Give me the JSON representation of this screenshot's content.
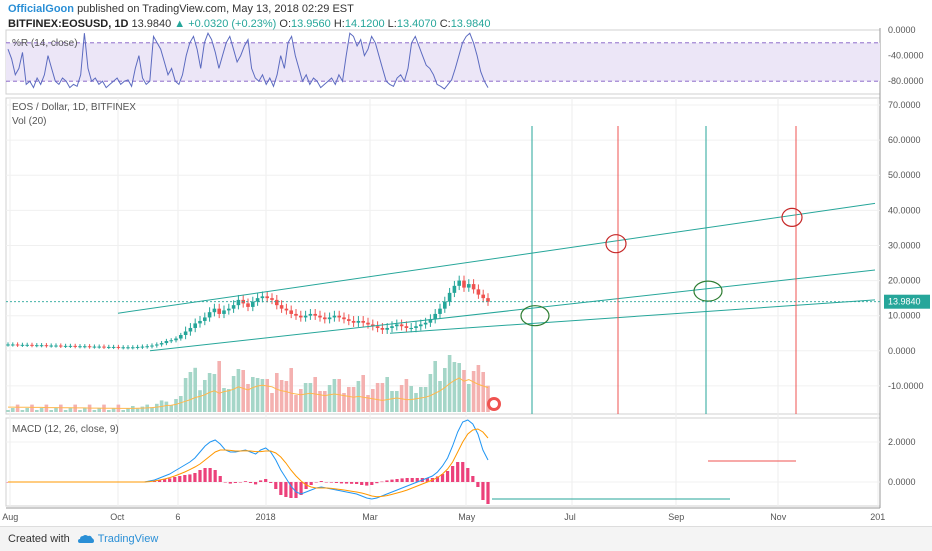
{
  "header": {
    "author": "OfficialGoon",
    "published_text": "published on TradingView.com, May 13, 2018 02:29 EST",
    "symbol": "BITFINEX:EOSUSD, 1D",
    "last": "13.9840",
    "change": "+0.0320 (+0.23%)",
    "o_label": "O:",
    "o_value": "13.9560",
    "h_label": "H:",
    "h_value": "14.1200",
    "l_label": "L:",
    "l_value": "13.4070",
    "c_label": "C:",
    "c_value": "13.9840"
  },
  "footer": {
    "created_with": "Created with",
    "brand": "TradingView"
  },
  "colors": {
    "up": "#26a69a",
    "down": "#ef5350",
    "accent": "#2a8fd6",
    "wr_band": "#ece6f7"
  },
  "chart_data": [
    {
      "type": "line",
      "pane": "williams-r",
      "title": "%R (14, close)",
      "ylim": [
        -100,
        0
      ],
      "y_ticks": [
        "0.0000",
        "-40.0000",
        "-80.0000"
      ],
      "y_tick_values": [
        0,
        -40,
        -80
      ],
      "band": [
        -80,
        -20
      ],
      "values": [
        -30,
        -45,
        -70,
        -60,
        -35,
        -85,
        -80,
        -90,
        -75,
        -85,
        -70,
        -40,
        -60,
        -80,
        -85,
        -75,
        -80,
        -90,
        -85,
        -88,
        -70,
        -5,
        -60,
        -80,
        -75,
        -85,
        -80,
        -90,
        -85,
        -80,
        -75,
        -85,
        -80,
        -78,
        -88,
        -60,
        -40,
        -75,
        -85,
        -80,
        -10,
        -20,
        -30,
        -50,
        -70,
        -60,
        -80,
        -85,
        -70,
        -40,
        -20,
        -10,
        -30,
        -60,
        -20,
        -5,
        -15,
        -35,
        -60,
        -40,
        -20,
        -10,
        -30,
        -50,
        -40,
        -25,
        -15,
        -60,
        -75,
        -80,
        -70,
        -85,
        -75,
        -88,
        -70,
        -40,
        -60,
        -20,
        -10,
        -40,
        -60,
        -80,
        -70,
        -85,
        -75,
        -80,
        -90,
        -85,
        -80,
        -75,
        -85,
        -70,
        -80,
        -40,
        -5,
        -10,
        -25,
        -15,
        -40,
        -30,
        -10,
        -20,
        -40,
        -60,
        -80,
        -85,
        -88,
        -75,
        -70,
        -80,
        -60,
        -20,
        -10,
        -25,
        -40,
        -55,
        -60,
        -70,
        -85,
        -88,
        -92,
        -85,
        -78,
        -60,
        -40,
        -20,
        -10,
        -5,
        -20,
        -40,
        -65,
        -80,
        -90
      ]
    },
    {
      "type": "candlestick",
      "pane": "price",
      "title": "EOS / Dollar, 1D, BITFINEX",
      "volume_label": "Vol (20)",
      "ylim": [
        -18,
        72
      ],
      "y_ticks": [
        "70.0000",
        "60.0000",
        "50.0000",
        "40.0000",
        "30.0000",
        "20.0000",
        "10.0000",
        "0.0000",
        "-10.0000"
      ],
      "y_tick_values": [
        70,
        60,
        50,
        40,
        30,
        20,
        10,
        0,
        -10
      ],
      "last_price_label": "13.9840",
      "last_price": 13.984,
      "x_ticks": [
        "Aug",
        "Oct",
        "6",
        "2018",
        "Mar",
        "May",
        "Jul",
        "Sep",
        "Nov",
        "201"
      ],
      "close": [
        1.8,
        1.8,
        1.7,
        1.7,
        1.7,
        1.6,
        1.6,
        1.6,
        1.5,
        1.5,
        1.5,
        1.4,
        1.4,
        1.4,
        1.3,
        1.3,
        1.3,
        1.2,
        1.2,
        1.2,
        1.1,
        1.1,
        1.1,
        1.0,
        1.0,
        1.0,
        1.0,
        1.1,
        1.2,
        1.3,
        1.5,
        1.8,
        2.2,
        2.8,
        3.0,
        3.5,
        4.5,
        5.5,
        6.5,
        7.8,
        8.5,
        9.5,
        11.0,
        12.0,
        10.5,
        11.5,
        12.0,
        13.0,
        14.5,
        13.5,
        12.5,
        14.0,
        15.0,
        15.5,
        15.0,
        14.5,
        13.0,
        12.0,
        11.5,
        10.5,
        10.0,
        9.5,
        10.0,
        10.5,
        10.0,
        9.5,
        9.0,
        9.5,
        10.0,
        9.5,
        9.0,
        8.5,
        8.0,
        8.5,
        8.0,
        7.5,
        7.0,
        6.5,
        6.0,
        6.5,
        7.0,
        7.5,
        7.0,
        6.5,
        6.5,
        7.0,
        7.5,
        8.0,
        9.0,
        10.5,
        12.0,
        14.0,
        16.5,
        18.5,
        20.0,
        18.0,
        19.0,
        17.5,
        16.0,
        15.0,
        13.98
      ],
      "trendlines": [
        {
          "from": [
            118,
            10.7
          ],
          "to": [
            875,
            42.0
          ],
          "color": "#26a69a"
        },
        {
          "from": [
            150,
            0.0
          ],
          "to": [
            875,
            23.0
          ],
          "color": "#26a69a"
        },
        {
          "from": [
            390,
            5.0
          ],
          "to": [
            875,
            14.5
          ],
          "color": "#26a69a"
        }
      ],
      "vertical_lines": [
        {
          "x": 532,
          "color": "#26a69a"
        },
        {
          "x": 618,
          "color": "#ef5350"
        },
        {
          "x": 706,
          "color": "#26a69a"
        },
        {
          "x": 796,
          "color": "#ef5350"
        }
      ],
      "circles": [
        {
          "x": 535,
          "y": 10.0,
          "color": "#2e7d32"
        },
        {
          "x": 616,
          "y": 30.5,
          "color": "#c62828"
        },
        {
          "x": 708,
          "y": 17.0,
          "color": "#2e7d32"
        },
        {
          "x": 792,
          "y": 38.0,
          "color": "#c62828"
        }
      ]
    },
    {
      "type": "line",
      "pane": "macd",
      "title": "MACD (12, 26, close, 9)",
      "ylim": [
        -1.2,
        3.2
      ],
      "y_ticks": [
        "2.0000",
        "0.0000"
      ],
      "y_tick_values": [
        2,
        0
      ],
      "macd": [
        0,
        0,
        0,
        0,
        0,
        0,
        0,
        0,
        0,
        0,
        0,
        0,
        0,
        0,
        0,
        0,
        0,
        0,
        0,
        0,
        0,
        0,
        0,
        0,
        0,
        0,
        0,
        0,
        0.05,
        0.1,
        0.2,
        0.3,
        0.4,
        0.55,
        0.7,
        0.85,
        1.0,
        1.2,
        1.5,
        1.8,
        2.0,
        2.1,
        1.9,
        1.6,
        1.5,
        1.5,
        1.55,
        1.6,
        1.5,
        1.4,
        1.6,
        1.7,
        1.5,
        1.1,
        0.6,
        0.2,
        -0.2,
        -0.5,
        -0.6,
        -0.5,
        -0.4,
        -0.3,
        -0.25,
        -0.3,
        -0.35,
        -0.4,
        -0.45,
        -0.5,
        -0.55,
        -0.6,
        -0.7,
        -0.8,
        -0.85,
        -0.8,
        -0.7,
        -0.6,
        -0.5,
        -0.4,
        -0.3,
        -0.2,
        -0.1,
        0,
        0.1,
        0.2,
        0.3,
        0.5,
        0.8,
        1.2,
        1.8,
        2.5,
        3.0,
        3.1,
        2.9,
        2.4,
        1.6,
        1.1
      ],
      "signal": [
        0,
        0,
        0,
        0,
        0,
        0,
        0,
        0,
        0,
        0,
        0,
        0,
        0,
        0,
        0,
        0,
        0,
        0,
        0,
        0,
        0,
        0,
        0,
        0,
        0,
        0,
        0,
        0,
        0.02,
        0.05,
        0.1,
        0.15,
        0.22,
        0.3,
        0.4,
        0.5,
        0.62,
        0.75,
        0.9,
        1.1,
        1.3,
        1.5,
        1.6,
        1.6,
        1.58,
        1.55,
        1.55,
        1.56,
        1.55,
        1.52,
        1.52,
        1.55,
        1.55,
        1.45,
        1.25,
        0.95,
        0.6,
        0.3,
        0.05,
        -0.15,
        -0.25,
        -0.3,
        -0.3,
        -0.3,
        -0.32,
        -0.35,
        -0.38,
        -0.42,
        -0.46,
        -0.5,
        -0.55,
        -0.62,
        -0.7,
        -0.74,
        -0.72,
        -0.68,
        -0.62,
        -0.55,
        -0.48,
        -0.4,
        -0.3,
        -0.2,
        -0.1,
        0,
        0.1,
        0.22,
        0.4,
        0.65,
        1.0,
        1.5,
        2.0,
        2.4,
        2.6,
        2.65,
        2.5,
        2.2
      ],
      "annotation_lines": [
        {
          "from": [
            708,
            1.05
          ],
          "to": [
            796,
            1.05
          ],
          "color": "#ef5350"
        },
        {
          "from": [
            492,
            -0.85
          ],
          "to": [
            730,
            -0.85
          ],
          "color": "#26a69a"
        }
      ]
    }
  ]
}
